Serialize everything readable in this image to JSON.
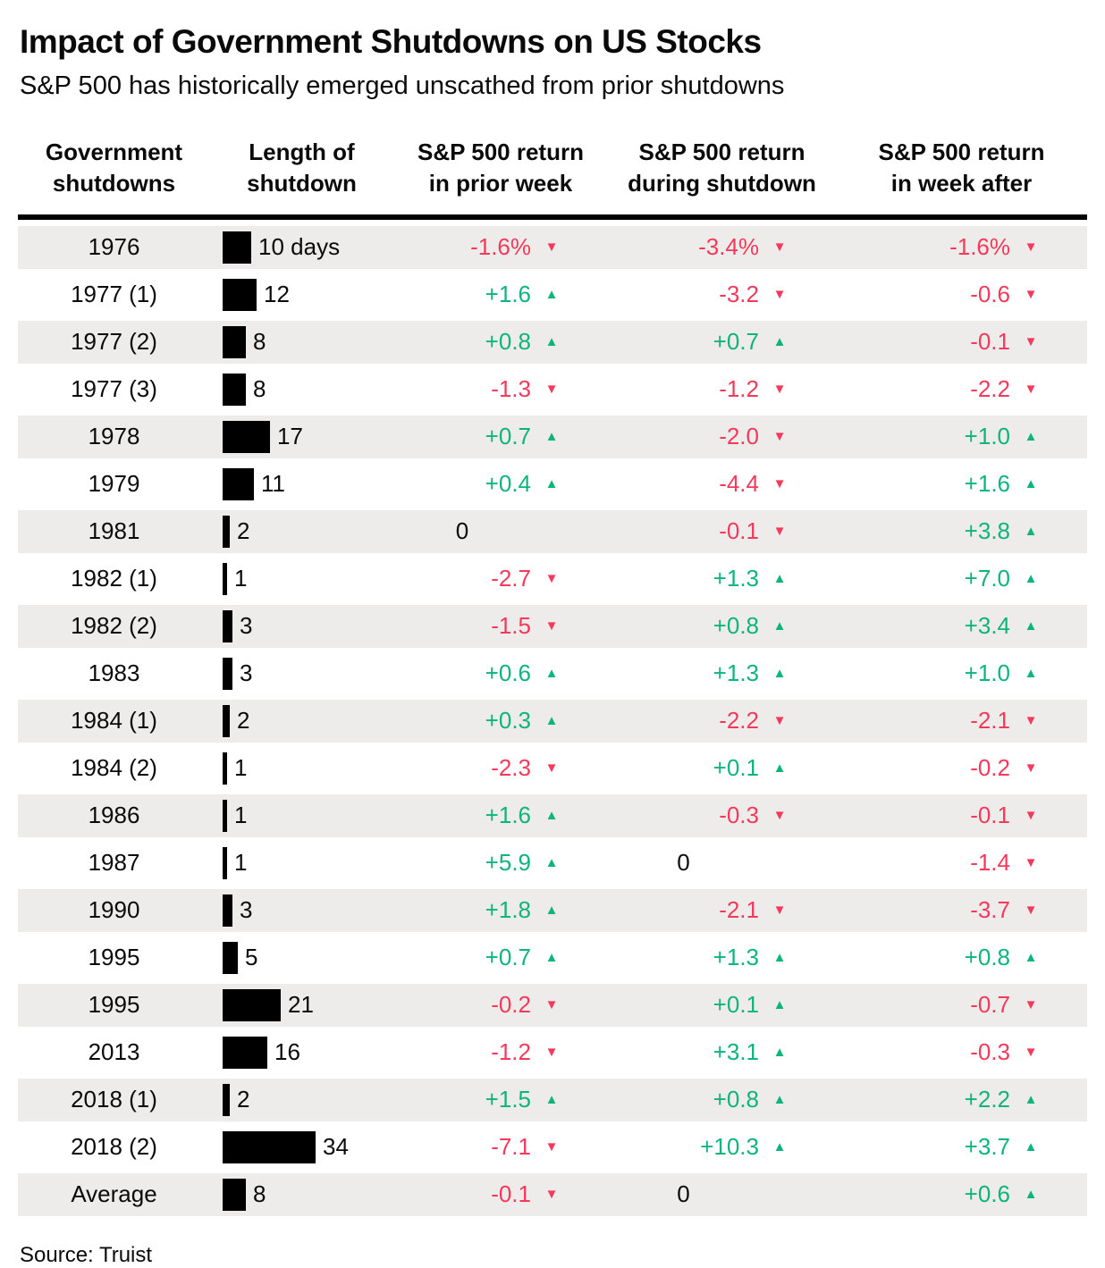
{
  "header": {
    "title": "Impact of Government Shutdowns on US Stocks",
    "subtitle": "S&P 500 has historically emerged unscathed from prior shutdowns"
  },
  "columns": [
    {
      "line1": "Government",
      "line2": "shutdowns"
    },
    {
      "line1": "Length of",
      "line2": "shutdown"
    },
    {
      "line1": "S&P 500 return",
      "line2": "in prior week"
    },
    {
      "line1": "S&P 500 return",
      "line2": "during shutdown"
    },
    {
      "line1": "S&P 500 return",
      "line2": "in week after"
    }
  ],
  "source": "Source: Truist",
  "colors": {
    "positive": "#0db47d",
    "negative": "#f4395b",
    "bar": "#000000",
    "row_alt": "#edecea",
    "text": "#0a0a0a"
  },
  "chart_data": {
    "type": "table",
    "title": "Impact of Government Shutdowns on US Stocks",
    "subtitle": "S&P 500 has historically emerged unscathed from prior shutdowns",
    "source": "Source: Truist",
    "columns": [
      "Government shutdowns",
      "Length of shutdown",
      "S&P 500 return in prior week",
      "S&P 500 return during shutdown",
      "S&P 500 return in week after"
    ],
    "length_unit": "days",
    "rows": [
      {
        "shutdown": "1976",
        "length_days": 10,
        "length_label": "10 days",
        "prior_week": {
          "value": "-1.6%",
          "direction": "down"
        },
        "during": {
          "value": "-3.4%",
          "direction": "down"
        },
        "week_after": {
          "value": "-1.6%",
          "direction": "down"
        }
      },
      {
        "shutdown": "1977 (1)",
        "length_days": 12,
        "length_label": "12",
        "prior_week": {
          "value": "+1.6",
          "direction": "up"
        },
        "during": {
          "value": "-3.2",
          "direction": "down"
        },
        "week_after": {
          "value": "-0.6",
          "direction": "down"
        }
      },
      {
        "shutdown": "1977 (2)",
        "length_days": 8,
        "length_label": "8",
        "prior_week": {
          "value": "+0.8",
          "direction": "up"
        },
        "during": {
          "value": "+0.7",
          "direction": "up"
        },
        "week_after": {
          "value": "-0.1",
          "direction": "down"
        }
      },
      {
        "shutdown": "1977 (3)",
        "length_days": 8,
        "length_label": "8",
        "prior_week": {
          "value": "-1.3",
          "direction": "down"
        },
        "during": {
          "value": "-1.2",
          "direction": "down"
        },
        "week_after": {
          "value": "-2.2",
          "direction": "down"
        }
      },
      {
        "shutdown": "1978",
        "length_days": 17,
        "length_label": "17",
        "prior_week": {
          "value": "+0.7",
          "direction": "up"
        },
        "during": {
          "value": "-2.0",
          "direction": "down"
        },
        "week_after": {
          "value": "+1.0",
          "direction": "up"
        }
      },
      {
        "shutdown": "1979",
        "length_days": 11,
        "length_label": "11",
        "prior_week": {
          "value": "+0.4",
          "direction": "up"
        },
        "during": {
          "value": "-4.4",
          "direction": "down"
        },
        "week_after": {
          "value": "+1.6",
          "direction": "up"
        }
      },
      {
        "shutdown": "1981",
        "length_days": 2,
        "length_label": "2",
        "prior_week": {
          "value": "0",
          "direction": "none"
        },
        "during": {
          "value": "-0.1",
          "direction": "down"
        },
        "week_after": {
          "value": "+3.8",
          "direction": "up"
        }
      },
      {
        "shutdown": "1982 (1)",
        "length_days": 1,
        "length_label": "1",
        "prior_week": {
          "value": "-2.7",
          "direction": "down"
        },
        "during": {
          "value": "+1.3",
          "direction": "up"
        },
        "week_after": {
          "value": "+7.0",
          "direction": "up"
        }
      },
      {
        "shutdown": "1982 (2)",
        "length_days": 3,
        "length_label": "3",
        "prior_week": {
          "value": "-1.5",
          "direction": "down"
        },
        "during": {
          "value": "+0.8",
          "direction": "up"
        },
        "week_after": {
          "value": "+3.4",
          "direction": "up"
        }
      },
      {
        "shutdown": "1983",
        "length_days": 3,
        "length_label": "3",
        "prior_week": {
          "value": "+0.6",
          "direction": "up"
        },
        "during": {
          "value": "+1.3",
          "direction": "up"
        },
        "week_after": {
          "value": "+1.0",
          "direction": "up"
        }
      },
      {
        "shutdown": "1984 (1)",
        "length_days": 2,
        "length_label": "2",
        "prior_week": {
          "value": "+0.3",
          "direction": "up"
        },
        "during": {
          "value": "-2.2",
          "direction": "down"
        },
        "week_after": {
          "value": "-2.1",
          "direction": "down"
        }
      },
      {
        "shutdown": "1984 (2)",
        "length_days": 1,
        "length_label": "1",
        "prior_week": {
          "value": "-2.3",
          "direction": "down"
        },
        "during": {
          "value": "+0.1",
          "direction": "up"
        },
        "week_after": {
          "value": "-0.2",
          "direction": "down"
        }
      },
      {
        "shutdown": "1986",
        "length_days": 1,
        "length_label": "1",
        "prior_week": {
          "value": "+1.6",
          "direction": "up"
        },
        "during": {
          "value": "-0.3",
          "direction": "down"
        },
        "week_after": {
          "value": "-0.1",
          "direction": "down"
        }
      },
      {
        "shutdown": "1987",
        "length_days": 1,
        "length_label": "1",
        "prior_week": {
          "value": "+5.9",
          "direction": "up"
        },
        "during": {
          "value": "0",
          "direction": "none"
        },
        "week_after": {
          "value": "-1.4",
          "direction": "down"
        }
      },
      {
        "shutdown": "1990",
        "length_days": 3,
        "length_label": "3",
        "prior_week": {
          "value": "+1.8",
          "direction": "up"
        },
        "during": {
          "value": "-2.1",
          "direction": "down"
        },
        "week_after": {
          "value": "-3.7",
          "direction": "down"
        }
      },
      {
        "shutdown": "1995",
        "length_days": 5,
        "length_label": "5",
        "prior_week": {
          "value": "+0.7",
          "direction": "up"
        },
        "during": {
          "value": "+1.3",
          "direction": "up"
        },
        "week_after": {
          "value": "+0.8",
          "direction": "up"
        }
      },
      {
        "shutdown": "1995",
        "length_days": 21,
        "length_label": "21",
        "prior_week": {
          "value": "-0.2",
          "direction": "down"
        },
        "during": {
          "value": "+0.1",
          "direction": "up"
        },
        "week_after": {
          "value": "-0.7",
          "direction": "down"
        }
      },
      {
        "shutdown": "2013",
        "length_days": 16,
        "length_label": "16",
        "prior_week": {
          "value": "-1.2",
          "direction": "down"
        },
        "during": {
          "value": "+3.1",
          "direction": "up"
        },
        "week_after": {
          "value": "-0.3",
          "direction": "down"
        }
      },
      {
        "shutdown": "2018 (1)",
        "length_days": 2,
        "length_label": "2",
        "prior_week": {
          "value": "+1.5",
          "direction": "up"
        },
        "during": {
          "value": "+0.8",
          "direction": "up"
        },
        "week_after": {
          "value": "+2.2",
          "direction": "up"
        }
      },
      {
        "shutdown": "2018 (2)",
        "length_days": 34,
        "length_label": "34",
        "prior_week": {
          "value": "-7.1",
          "direction": "down"
        },
        "during": {
          "value": "+10.3",
          "direction": "up"
        },
        "week_after": {
          "value": "+3.7",
          "direction": "up"
        }
      },
      {
        "shutdown": "Average",
        "length_days": 8,
        "length_label": "8",
        "prior_week": {
          "value": "-0.1",
          "direction": "down"
        },
        "during": {
          "value": "0",
          "direction": "none"
        },
        "week_after": {
          "value": "+0.6",
          "direction": "up"
        }
      }
    ]
  }
}
